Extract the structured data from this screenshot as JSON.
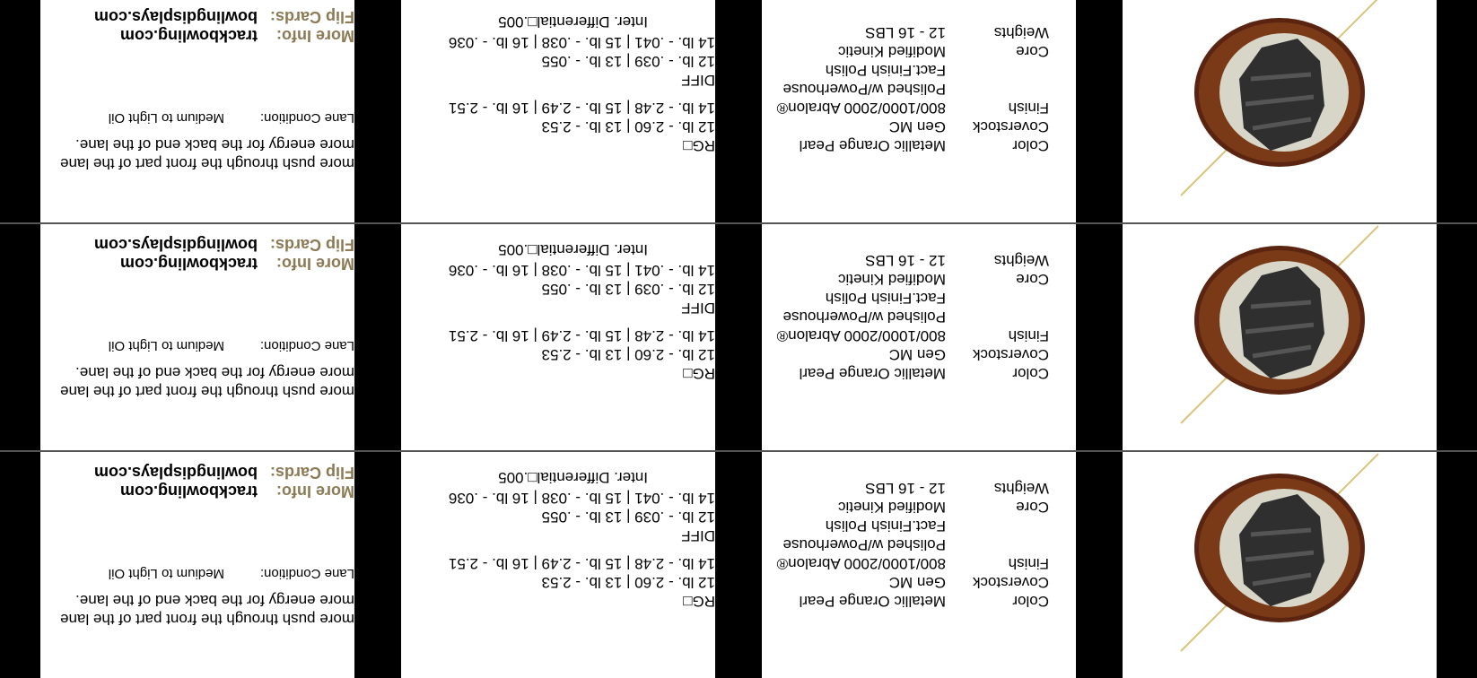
{
  "cards": [
    {
      "specs": {
        "color_label": "Color",
        "color_value": "Metallic Orange Pearl",
        "coverstock_label": "Coverstock",
        "coverstock_value": "Gen MC",
        "finish_label": "Finish",
        "finish_lines": [
          "800/1000/2000 Abralon®",
          "Polished w/Powerhouse",
          "Fact.Finish Polish"
        ],
        "core_label": "Core",
        "core_value": "Modified Kinetic",
        "weights_label": "Weights",
        "weights_value": "12 - 16 LBS"
      },
      "rg": {
        "rg_label": "RG□",
        "rg_line1": "12 lb. - 2.60 | 13 lb. - 2.53",
        "rg_line2": "14 lb. - 2.48 | 15 lb. - 2.49 | 16 lb. - 2.51",
        "diff_label": "DIFF",
        "diff_line1": "12 lb. - .039 | 13 lb. - .055",
        "diff_line2": "14 lb. - .041 | 15 lb. - .038 | 16 lb. - .036",
        "inter_diff": "Inter. Differential□.005"
      },
      "info": {
        "desc_line1": "more push through the front part of the lane",
        "desc_line2": "more energy for the back end of the lane.",
        "lane_label": "Lane Condition:",
        "lane_value": "Medium to Light Oil",
        "more_info_label": "More Info:",
        "more_info_value": "trackbowling.com",
        "flip_label": "Flip Cards:",
        "flip_value": "bowlingdisplays.com"
      }
    },
    {
      "specs": {
        "color_label": "Color",
        "color_value": "Metallic Orange Pearl",
        "coverstock_label": "Coverstock",
        "coverstock_value": "Gen MC",
        "finish_label": "Finish",
        "finish_lines": [
          "800/1000/2000 Abralon®",
          "Polished w/Powerhouse",
          "Fact.Finish Polish"
        ],
        "core_label": "Core",
        "core_value": "Modified Kinetic",
        "weights_label": "Weights",
        "weights_value": "12 - 16 LBS"
      },
      "rg": {
        "rg_label": "RG□",
        "rg_line1": "12 lb. - 2.60 | 13 lb. - 2.53",
        "rg_line2": "14 lb. - 2.48 | 15 lb. - 2.49 | 16 lb. - 2.51",
        "diff_label": "DIFF",
        "diff_line1": "12 lb. - .039 | 13 lb. - .055",
        "diff_line2": "14 lb. - .041 | 15 lb. - .038 | 16 lb. - .036",
        "inter_diff": "Inter. Differential□.005"
      },
      "info": {
        "desc_line1": "more push through the front part of the lane",
        "desc_line2": "more energy for the back end of the lane.",
        "lane_label": "Lane Condition:",
        "lane_value": "Medium to Light Oil",
        "more_info_label": "More Info:",
        "more_info_value": "trackbowling.com",
        "flip_label": "Flip Cards:",
        "flip_value": "bowlingdisplays.com"
      }
    },
    {
      "specs": {
        "color_label": "Color",
        "color_value": "Metallic Orange Pearl",
        "coverstock_label": "Coverstock",
        "coverstock_value": "Gen MC",
        "finish_label": "Finish",
        "finish_lines": [
          "800/1000/2000 Abralon®",
          "Polished w/Powerhouse",
          "Fact.Finish Polish"
        ],
        "core_label": "Core",
        "core_value": "Modified Kinetic",
        "weights_label": "Weights",
        "weights_value": "12 - 16 LBS"
      },
      "rg": {
        "rg_label": "RG□",
        "rg_line1": "12 lb. - 2.60 | 13 lb. - 2.53",
        "rg_line2": "14 lb. - 2.48 | 15 lb. - 2.49 | 16 lb. - 2.51",
        "diff_label": "DIFF",
        "diff_line1": "12 lb. - .039 | 13 lb. - .055",
        "diff_line2": "14 lb. - .041 | 15 lb. - .038 | 16 lb. - .036",
        "inter_diff": "Inter. Differential□.005"
      },
      "info": {
        "desc_line1": "more push through the front part of the lane",
        "desc_line2": "more energy for the back end of the lane.",
        "lane_label": "Lane Condition:",
        "lane_value": "Medium to Light Oil",
        "more_info_label": "More Info:",
        "more_info_value": "trackbowling.com",
        "flip_label": "Flip Cards:",
        "flip_value": "bowlingdisplays.com"
      }
    }
  ],
  "colors": {
    "accent_brown": "#8c7a55",
    "ball_shell": "#6b2e12",
    "core_dark": "#2f2f2f",
    "divider": "#000000"
  },
  "icons": [
    "bowling-ball-core-icon"
  ]
}
